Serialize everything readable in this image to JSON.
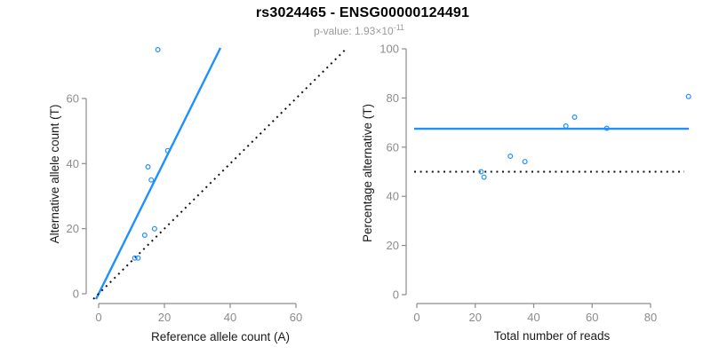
{
  "header": {
    "title": "rs3024465 - ENSG00000124491",
    "pvalue_prefix": "p-value: ",
    "pvalue_mantissa": "1.93",
    "pvalue_times": "×10",
    "pvalue_exponent": "-11"
  },
  "colors": {
    "accent_blue": "#1E90FF",
    "axis_gray": "#8C8C8C",
    "title_black": "#000000",
    "subtitle_gray": "#9b9b9b",
    "dotted_black": "#111111"
  },
  "chart_data": [
    {
      "type": "scatter",
      "panel": "left",
      "xlabel": "Reference allele count (A)",
      "ylabel": "Alternative allele count (T)",
      "xticks": [
        0,
        20,
        40,
        60
      ],
      "yticks": [
        0,
        20,
        40,
        60
      ],
      "xlim": [
        0,
        75.5
      ],
      "ylim": [
        0,
        75.5
      ],
      "grid": false,
      "legend": "none",
      "points": [
        [
          11,
          11
        ],
        [
          12,
          11
        ],
        [
          14,
          18
        ],
        [
          15,
          39
        ],
        [
          16,
          35
        ],
        [
          17,
          20
        ],
        [
          18,
          75
        ],
        [
          21,
          44
        ]
      ],
      "lines": [
        {
          "kind": "abline",
          "slope": 2.04,
          "intercept": 0,
          "color": "blue",
          "dashed": false,
          "role": "fitted-allelic-ratio"
        },
        {
          "kind": "abline",
          "slope": 1,
          "intercept": 0,
          "color": "black",
          "dashed": true,
          "role": "identity-line"
        }
      ]
    },
    {
      "type": "scatter",
      "panel": "right",
      "xlabel": "Total number of reads",
      "ylabel": "Percentage alternative (T)",
      "xticks": [
        0,
        20,
        40,
        60,
        80
      ],
      "yticks": [
        0,
        20,
        40,
        60,
        80,
        100
      ],
      "xlim": [
        0,
        94
      ],
      "ylim": [
        0,
        100
      ],
      "grid": false,
      "legend": "none",
      "points": [
        [
          22,
          50
        ],
        [
          23,
          47.8
        ],
        [
          32,
          56.3
        ],
        [
          37,
          54.1
        ],
        [
          51,
          68.6
        ],
        [
          54,
          72.2
        ],
        [
          65,
          67.7
        ],
        [
          93,
          80.6
        ]
      ],
      "lines": [
        {
          "kind": "hline",
          "y": 67.5,
          "color": "blue",
          "dashed": false,
          "role": "mean-percentage-line"
        },
        {
          "kind": "hline",
          "y": 50,
          "color": "black",
          "dashed": true,
          "role": "fifty-percent-line"
        }
      ]
    }
  ]
}
